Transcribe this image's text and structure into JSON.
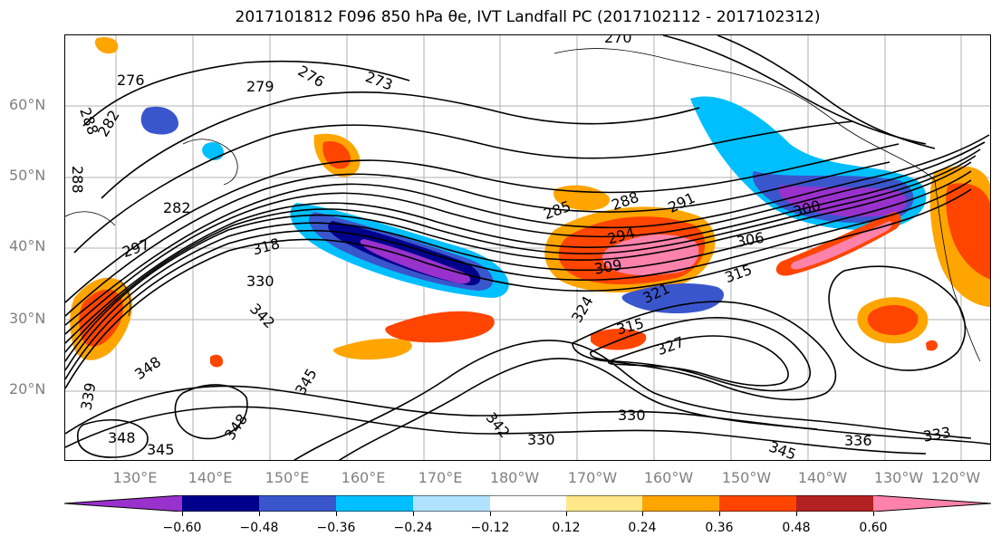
{
  "title": "2017101812 F096 850 hPa θe, IVT Landfall PC (2017102112 - 2017102312)",
  "lat_labels": [
    "60°N",
    "50°N",
    "40°N",
    "30°N",
    "20°N"
  ],
  "lon_labels": [
    "130°E",
    "140°E",
    "150°E",
    "160°E",
    "170°E",
    "180°W",
    "170°W",
    "160°W",
    "150°W",
    "140°W",
    "130°W",
    "120°W"
  ],
  "contour_labels": [
    "276",
    "279",
    "276",
    "273",
    "270",
    "288",
    "282",
    "288",
    "282",
    "285",
    "288",
    "291",
    "294",
    "300",
    "297",
    "306",
    "318",
    "309",
    "315",
    "330",
    "324",
    "321",
    "342",
    "345",
    "348",
    "339",
    "348",
    "345",
    "348",
    "327",
    "315",
    "342",
    "330",
    "330",
    "345",
    "336",
    "333"
  ],
  "colorbar": {
    "ticks": [
      "−0.60",
      "−0.48",
      "−0.36",
      "−0.24",
      "−0.12",
      "0.12",
      "0.24",
      "0.36",
      "0.48",
      "0.60"
    ],
    "colors": [
      "#9932cc",
      "#00008b",
      "#3a56cc",
      "#00bfff",
      "#b0e2ff",
      "#ffffff",
      "#ffe88a",
      "#ffa500",
      "#ff4500",
      "#b22222",
      "#ff82ab"
    ]
  }
}
